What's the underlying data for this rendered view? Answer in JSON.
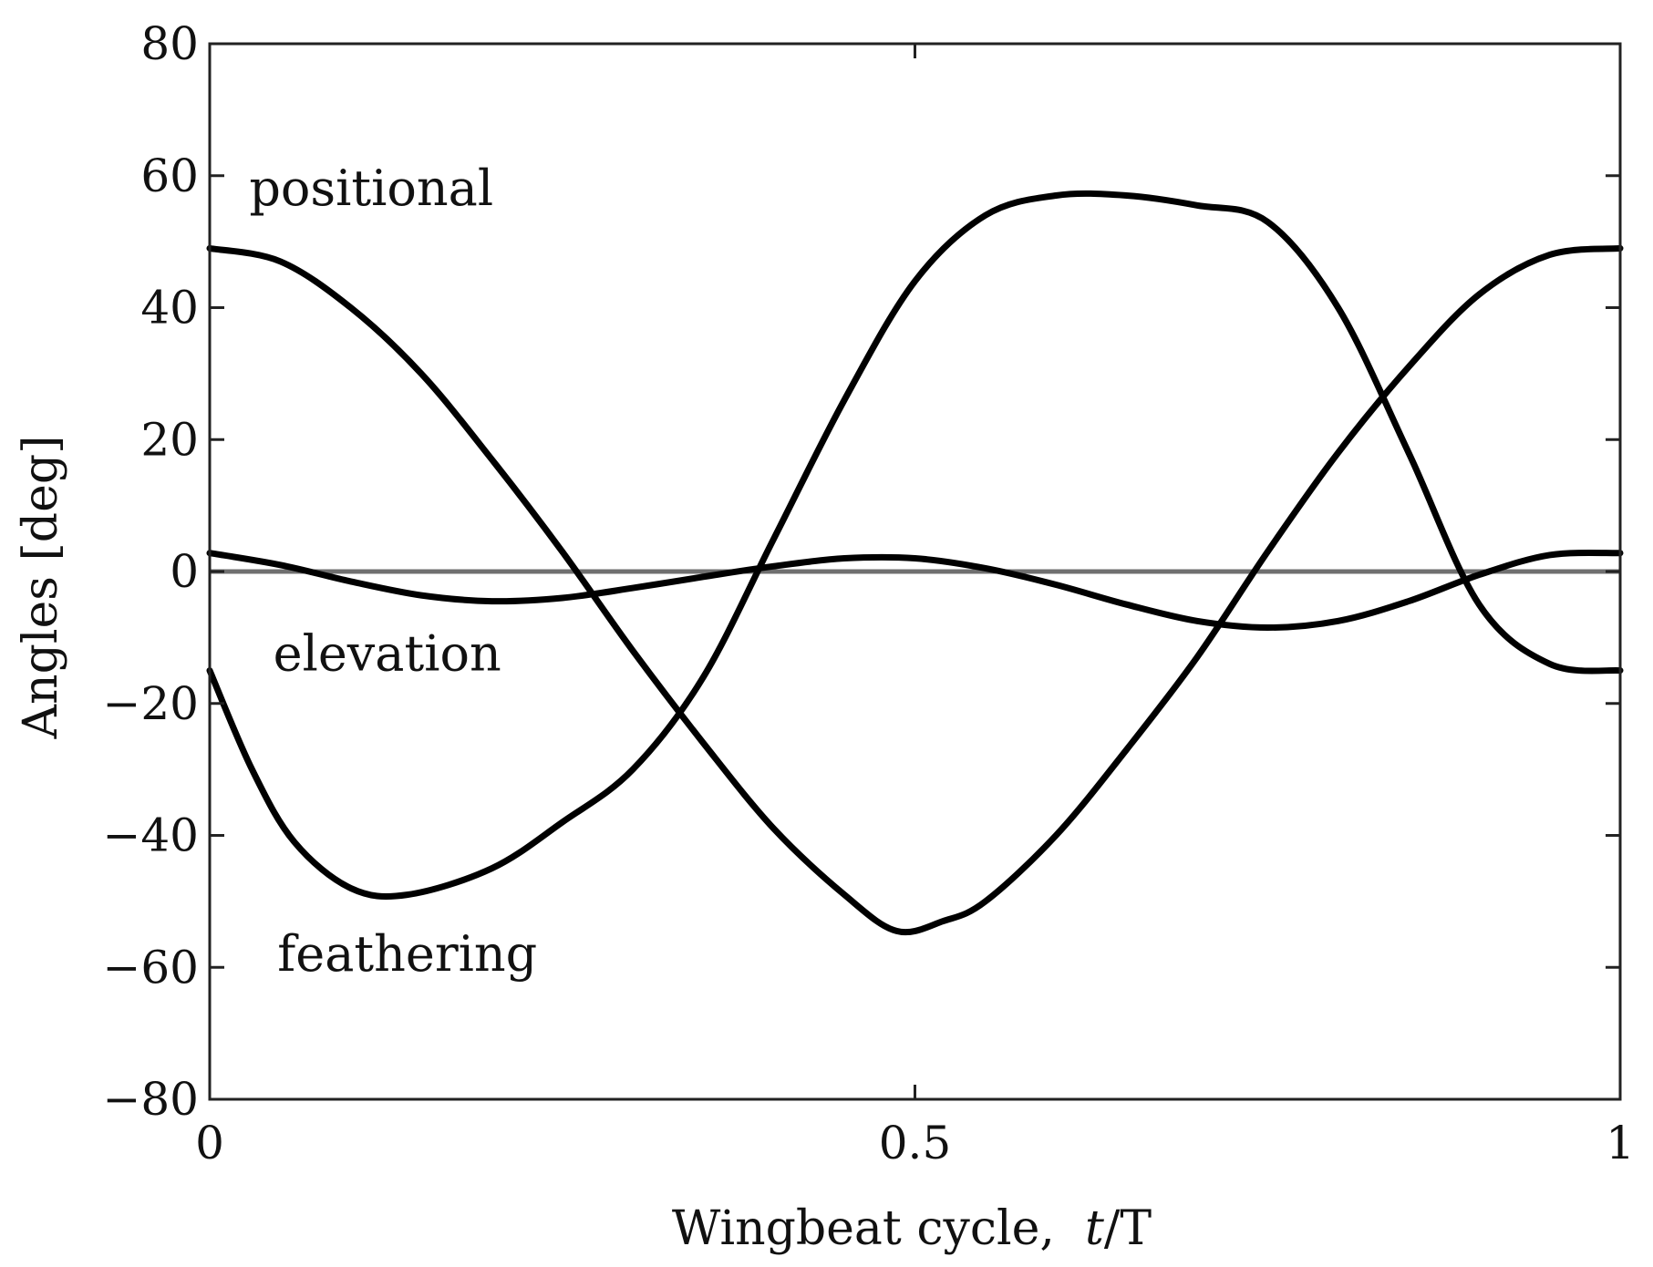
{
  "chart_data": {
    "type": "line",
    "title": "",
    "xlabel": "Wingbeat cycle,  t/T",
    "xlabel_main": "Wingbeat cycle,  ",
    "xlabel_italic": "t",
    "xlabel_tail": "/T",
    "ylabel": "Angles [deg]",
    "xlim": [
      0,
      1
    ],
    "ylim": [
      -80,
      80
    ],
    "xticks": [
      0,
      0.5,
      1
    ],
    "xtick_labels": [
      "0",
      "0.5",
      "1"
    ],
    "yticks": [
      -80,
      -60,
      -40,
      -20,
      0,
      20,
      40,
      60,
      80
    ],
    "ytick_labels": [
      "−80",
      "−60",
      "−40",
      "−20",
      "0",
      "20",
      "40",
      "60",
      "80"
    ],
    "grid": false,
    "reference_line": {
      "y": 0,
      "color": "#707070"
    },
    "series": [
      {
        "name": "positional",
        "color": "#000000",
        "x": [
          0,
          0.05,
          0.1,
          0.15,
          0.2,
          0.25,
          0.3,
          0.35,
          0.4,
          0.45,
          0.487,
          0.52,
          0.55,
          0.6,
          0.65,
          0.7,
          0.75,
          0.8,
          0.85,
          0.9,
          0.95,
          1.0
        ],
        "y": [
          49,
          47,
          40,
          30,
          17,
          3,
          -12,
          -26,
          -39,
          -49,
          -54.5,
          -53,
          -50,
          -40,
          -27,
          -13,
          3,
          18,
          31,
          42,
          48,
          49
        ]
      },
      {
        "name": "elevation",
        "color": "#000000",
        "x": [
          0,
          0.05,
          0.1,
          0.15,
          0.2,
          0.25,
          0.3,
          0.35,
          0.4,
          0.45,
          0.5,
          0.55,
          0.6,
          0.65,
          0.7,
          0.75,
          0.8,
          0.85,
          0.9,
          0.95,
          1.0
        ],
        "y": [
          2.8,
          1.0,
          -1.5,
          -3.6,
          -4.5,
          -4.0,
          -2.5,
          -0.8,
          0.8,
          2.0,
          2.0,
          0.5,
          -2.0,
          -5.0,
          -7.5,
          -8.5,
          -7.5,
          -4.5,
          -0.5,
          2.5,
          2.8
        ]
      },
      {
        "name": "feathering",
        "color": "#000000",
        "x": [
          0,
          0.03,
          0.06,
          0.1,
          0.14,
          0.2,
          0.25,
          0.3,
          0.35,
          0.4,
          0.45,
          0.5,
          0.55,
          0.6,
          0.65,
          0.7,
          0.75,
          0.8,
          0.85,
          0.9,
          0.95,
          1.0
        ],
        "y": [
          -15,
          -30,
          -41,
          -48,
          -49,
          -45,
          -38,
          -30,
          -16,
          5,
          26,
          44,
          54,
          57,
          57,
          55.5,
          53,
          40,
          18,
          -5,
          -14,
          -15
        ]
      }
    ],
    "annotations": [
      {
        "text": "positional",
        "x": 0.028,
        "y": 58.0
      },
      {
        "text": "elevation",
        "x": 0.045,
        "y": -12.5
      },
      {
        "text": "feathering",
        "x": 0.048,
        "y": -58.0
      }
    ]
  }
}
